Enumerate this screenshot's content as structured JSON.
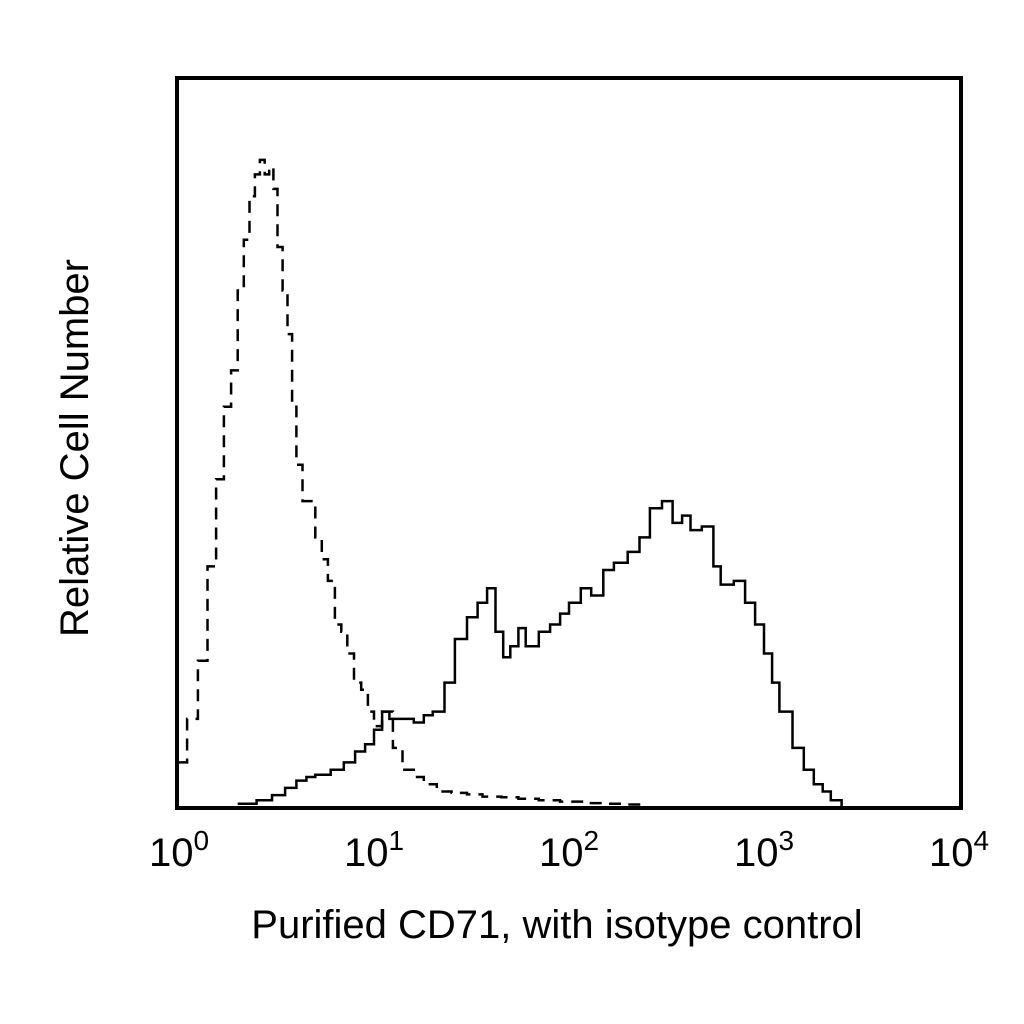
{
  "chart_data": {
    "type": "line",
    "title": "",
    "xlabel": "Purified CD71, with isotype control",
    "ylabel": "Relative Cell Number",
    "x_scale": "log",
    "xlim": [
      1,
      10000
    ],
    "ylim": [
      0,
      100
    ],
    "y_tick_labels": false,
    "grid": false,
    "legend": "none",
    "x_ticks": [
      {
        "base": "10",
        "exp": "0",
        "value": 1
      },
      {
        "base": "10",
        "exp": "1",
        "value": 10
      },
      {
        "base": "10",
        "exp": "2",
        "value": 100
      },
      {
        "base": "10",
        "exp": "3",
        "value": 1000
      },
      {
        "base": "10",
        "exp": "4",
        "value": 10000
      }
    ],
    "series": [
      {
        "style": "dashed",
        "color": "#000000",
        "x": [
          1.0,
          1.1,
          1.25,
          1.4,
          1.55,
          1.7,
          1.85,
          2.0,
          2.15,
          2.3,
          2.45,
          2.6,
          2.75,
          2.9,
          3.05,
          3.2,
          3.4,
          3.6,
          3.8,
          4.0,
          4.3,
          4.6,
          5.0,
          5.4,
          5.8,
          6.3,
          6.8,
          7.3,
          7.9,
          8.6,
          9.3,
          10.0,
          11.0,
          12.5,
          14.0,
          16.0,
          18.0,
          21.0,
          25.0,
          30.0,
          36.0,
          45.0,
          55.0,
          70.0,
          90.0,
          120.0,
          160.0,
          200.0,
          250.0
        ],
        "values": [
          6,
          12,
          20,
          33,
          45,
          55,
          60,
          71,
          78,
          84,
          87,
          89,
          87,
          88,
          85,
          77,
          71,
          65,
          55,
          47,
          42,
          42,
          37,
          34,
          31,
          25,
          24,
          21,
          17,
          16,
          13,
          11,
          13,
          8,
          5,
          4,
          3,
          2,
          1.8,
          1.6,
          1.3,
          1.2,
          1.0,
          0.8,
          0.6,
          0.4,
          0.3,
          0.2,
          0.1
        ]
      },
      {
        "style": "solid",
        "color": "#000000",
        "x": [
          2.0,
          2.5,
          3.0,
          3.5,
          4.0,
          4.5,
          5.0,
          6.0,
          7.0,
          8.0,
          9.0,
          10.0,
          11.0,
          12.0,
          14.0,
          16.0,
          18.0,
          20.0,
          23.0,
          26.0,
          30.0,
          34.0,
          38.0,
          42.0,
          46.0,
          50.0,
          55.0,
          60.0,
          70.0,
          80.0,
          90.0,
          100.0,
          115.0,
          130.0,
          150.0,
          170.0,
          200.0,
          230.0,
          260.0,
          300.0,
          340.0,
          380.0,
          420.0,
          480.0,
          550.0,
          600.0,
          650.0,
          700.0,
          800.0,
          900.0,
          1000.0,
          1100.0,
          1200.0,
          1400.0,
          1600.0,
          1800.0,
          2000.0,
          2200.0,
          2500.0
        ],
        "values": [
          0.3,
          0.8,
          1.5,
          2.5,
          3.5,
          4.0,
          4.3,
          5.0,
          6.0,
          7.5,
          8.5,
          10.5,
          13.0,
          12.0,
          12.0,
          11.5,
          12.5,
          13.0,
          17.0,
          23.0,
          26.0,
          28.0,
          30.0,
          24.0,
          20.5,
          22.0,
          24.5,
          22.0,
          24.0,
          25.0,
          26.5,
          28.0,
          30.0,
          29.0,
          32.5,
          33.5,
          35.0,
          37.0,
          41.0,
          42.0,
          39.0,
          40.0,
          38.0,
          38.5,
          33.0,
          30.5,
          30.5,
          31.0,
          28.0,
          25.0,
          21.0,
          17.0,
          13.0,
          8.0,
          5.0,
          3.0,
          2.0,
          0.8,
          0.0
        ]
      }
    ]
  }
}
